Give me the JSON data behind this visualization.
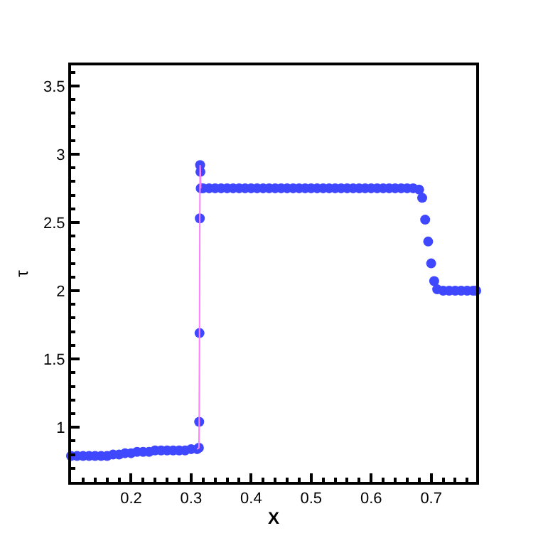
{
  "chart_data": {
    "type": "scatter",
    "xlabel": "X",
    "ylabel": "τ",
    "xlim": [
      0.1,
      0.775
    ],
    "ylim": [
      0.6,
      3.65
    ],
    "xticks": [
      0.2,
      0.3,
      0.4,
      0.5,
      0.6,
      0.7
    ],
    "yticks": [
      1,
      1.5,
      2,
      2.5,
      3,
      3.5
    ],
    "marker": "circle",
    "series": [
      {
        "color": "#3f48ff",
        "x": [
          0.1,
          0.11,
          0.12,
          0.13,
          0.14,
          0.15,
          0.16,
          0.17,
          0.18,
          0.19,
          0.2,
          0.21,
          0.22,
          0.23,
          0.24,
          0.25,
          0.26,
          0.27,
          0.28,
          0.29,
          0.3,
          0.31,
          0.313,
          0.3135,
          0.314,
          0.3145,
          0.315,
          0.3155,
          0.316,
          0.32,
          0.33,
          0.34,
          0.35,
          0.36,
          0.37,
          0.38,
          0.39,
          0.4,
          0.41,
          0.42,
          0.43,
          0.44,
          0.45,
          0.46,
          0.47,
          0.48,
          0.49,
          0.5,
          0.51,
          0.52,
          0.53,
          0.54,
          0.55,
          0.56,
          0.57,
          0.58,
          0.59,
          0.6,
          0.61,
          0.62,
          0.63,
          0.64,
          0.65,
          0.66,
          0.67,
          0.68,
          0.685,
          0.69,
          0.695,
          0.7,
          0.705,
          0.71,
          0.72,
          0.73,
          0.74,
          0.75,
          0.76,
          0.77,
          0.775
        ],
        "values": [
          0.79,
          0.79,
          0.79,
          0.79,
          0.79,
          0.79,
          0.79,
          0.8,
          0.8,
          0.81,
          0.81,
          0.82,
          0.82,
          0.82,
          0.83,
          0.83,
          0.83,
          0.83,
          0.83,
          0.83,
          0.84,
          0.84,
          0.85,
          1.04,
          1.69,
          2.53,
          2.92,
          2.87,
          2.75,
          2.75,
          2.75,
          2.75,
          2.75,
          2.75,
          2.75,
          2.75,
          2.75,
          2.75,
          2.75,
          2.75,
          2.75,
          2.75,
          2.75,
          2.75,
          2.75,
          2.75,
          2.75,
          2.75,
          2.75,
          2.75,
          2.75,
          2.75,
          2.75,
          2.75,
          2.75,
          2.75,
          2.75,
          2.75,
          2.75,
          2.75,
          2.75,
          2.75,
          2.75,
          2.75,
          2.75,
          2.74,
          2.68,
          2.52,
          2.36,
          2.2,
          2.07,
          2.01,
          2.0,
          2.0,
          2.0,
          2.0,
          2.0,
          2.0,
          2.0
        ]
      },
      {
        "type": "line",
        "color": "#ff80ff",
        "marker": "none",
        "x": [
          0.31,
          0.313,
          0.3135,
          0.314,
          0.3145,
          0.315,
          0.3155,
          0.316
        ],
        "values": [
          0.84,
          0.85,
          1.04,
          1.69,
          2.53,
          2.92,
          2.87,
          2.75
        ]
      }
    ]
  }
}
